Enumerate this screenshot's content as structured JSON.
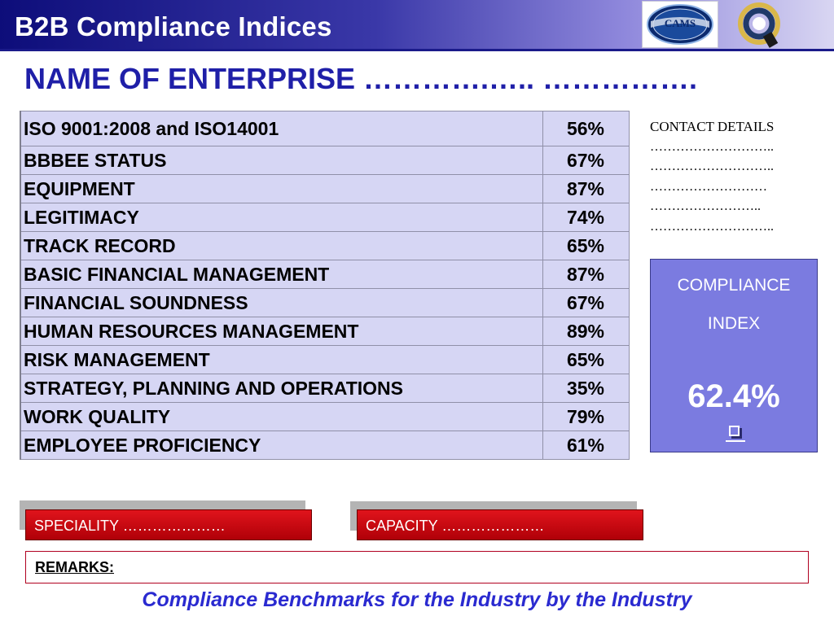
{
  "header": {
    "title": "B2B Compliance Indices",
    "accent_color": "#0d0d7a",
    "logos": [
      "CAMS",
      "Q"
    ]
  },
  "enterprise": "NAME OF ENTERPRISE ………….….. …………….",
  "indices": [
    {
      "label": "ISO 9001:2008 and ISO14001",
      "value": "56%"
    },
    {
      "label": "BBBEE  STATUS",
      "value": "67%"
    },
    {
      "label": "EQUIPMENT",
      "value": "87%"
    },
    {
      "label": "LEGITIMACY",
      "value": "74%"
    },
    {
      "label": "TRACK RECORD",
      "value": "65%"
    },
    {
      "label": "BASIC FINANCIAL MANAGEMENT",
      "value": "87%"
    },
    {
      "label": "FINANCIAL SOUNDNESS",
      "value": "67%"
    },
    {
      "label": "HUMAN RESOURCES MANAGEMENT",
      "value": "89%"
    },
    {
      "label": "RISK MANAGEMENT",
      "value": "65%"
    },
    {
      "label": "STRATEGY, PLANNING AND OPERATIONS",
      "value": "35%"
    },
    {
      "label": "WORK QUALITY",
      "value": "79%"
    },
    {
      "label": "EMPLOYEE  PROFICIENCY",
      "value": "61%"
    }
  ],
  "contact": {
    "title": "CONTACT DETAILS",
    "lines": [
      "………………………..",
      "………………………..",
      "………………………",
      "……………………..",
      "……………………….."
    ]
  },
  "compliance": {
    "label_line1": "COMPLIANCE",
    "label_line2": "INDEX",
    "value": "62.4%"
  },
  "tags": {
    "speciality": "SPECIALITY …………………",
    "capacity": "CAPACITY …………………"
  },
  "remarks_label": "REMARKS:",
  "footer": "Compliance Benchmarks for the Industry by the Industry"
}
